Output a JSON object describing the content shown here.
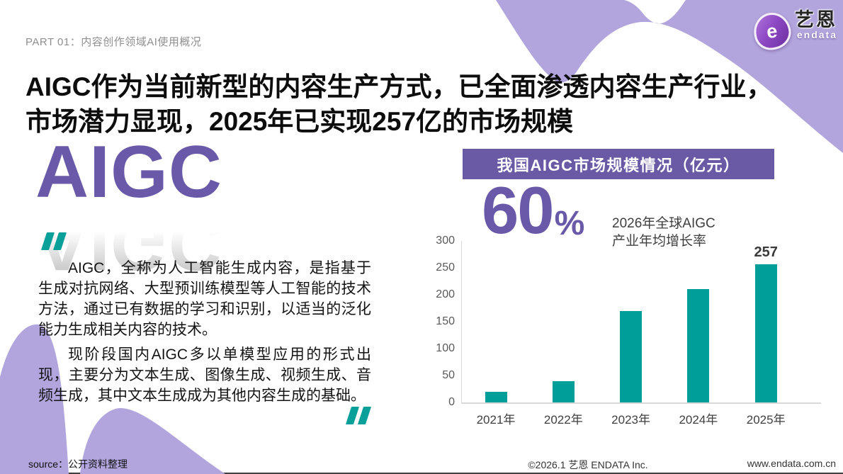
{
  "page": {
    "part_label": "PART 01：内容创作领域AI使用概况",
    "title": "AIGC作为当前新型的内容生产方式，已全面渗透内容生产行业，市场潜力显现，2025年已实现257亿的市场规模"
  },
  "logo": {
    "icon": "endata-e-badge-icon",
    "icon_glyph": "e",
    "brand_cn": "艺恩",
    "brand_en": "endata"
  },
  "left_panel": {
    "display_word": "AIGC",
    "paragraph1": "AIGC，全称为人工智能生成内容，是指基于生成对抗网络、大型预训练模型等人工智能的技术方法，通过已有数据的学习和识别，以适当的泛化能力生成相关内容的技术。",
    "paragraph2": "现阶段国内AIGC多以单模型应用的形式出现，主要分为文本生成、图像生成、视频生成、音频生成，其中文本生成成为其他内容生成的基础。"
  },
  "right_panel": {
    "highlight_value": "60",
    "highlight_unit": "%",
    "highlight_caption_line1": "2026年全球AIGC",
    "highlight_caption_line2": "产业年均增长率"
  },
  "chart_data": {
    "type": "bar",
    "title": "我国AIGC市场规模情况（亿元）",
    "unit": "亿元",
    "categories": [
      "2021年",
      "2022年",
      "2023年",
      "2024年",
      "2025年"
    ],
    "values": [
      20,
      40,
      170,
      210,
      257
    ],
    "data_labels": [
      "",
      "",
      "",
      "",
      "257"
    ],
    "ylim": [
      0,
      300
    ],
    "yticks": [
      0,
      50,
      100,
      150,
      200,
      250,
      300
    ],
    "grid": false,
    "legend": false,
    "bar_color": "#009e99"
  },
  "footer": {
    "source": "source：公开资料整理",
    "copyright": "©2026.1  艺恩 ENDATA Inc.",
    "website": "www.endata.com.cn"
  },
  "colors": {
    "purple_accent": "#6a59a8",
    "banner_purple": "#6a5aa6",
    "wave_purple": "#b2a5dd",
    "teal": "#009e99"
  }
}
